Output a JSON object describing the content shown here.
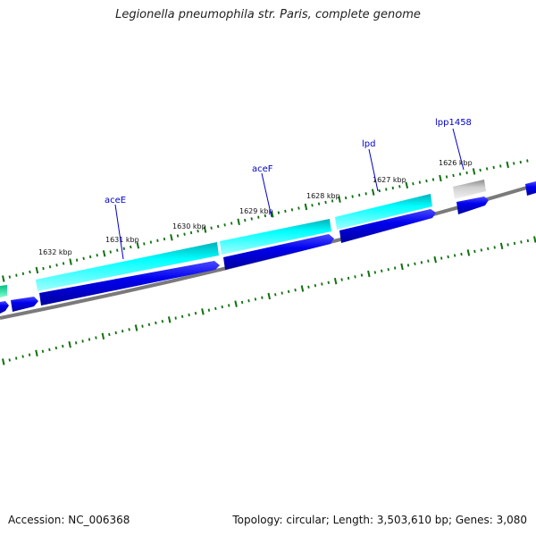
{
  "title": "Legionella pneumophila str. Paris, complete genome",
  "footer": {
    "accession": "Accession: NC_006368",
    "stats": "Topology: circular; Length: 3,503,610 bp; Genes: 3,080"
  },
  "colors": {
    "backbone": "#7f7f7f",
    "tick": "#107010",
    "gene_forward_track": "#00e5ee",
    "gene_reverse_track": "#0000ee",
    "pseudo_gene": "#b8b8b8",
    "label": "#0000cc"
  },
  "scale_labels": [
    "1632 kbp",
    "1631 kbp",
    "1630 kbp",
    "1629 kbp",
    "1628 kbp",
    "1627 kbp",
    "1626 kbp"
  ],
  "gene_labels": [
    "aceE",
    "aceF",
    "lpd",
    "lpp1458"
  ]
}
